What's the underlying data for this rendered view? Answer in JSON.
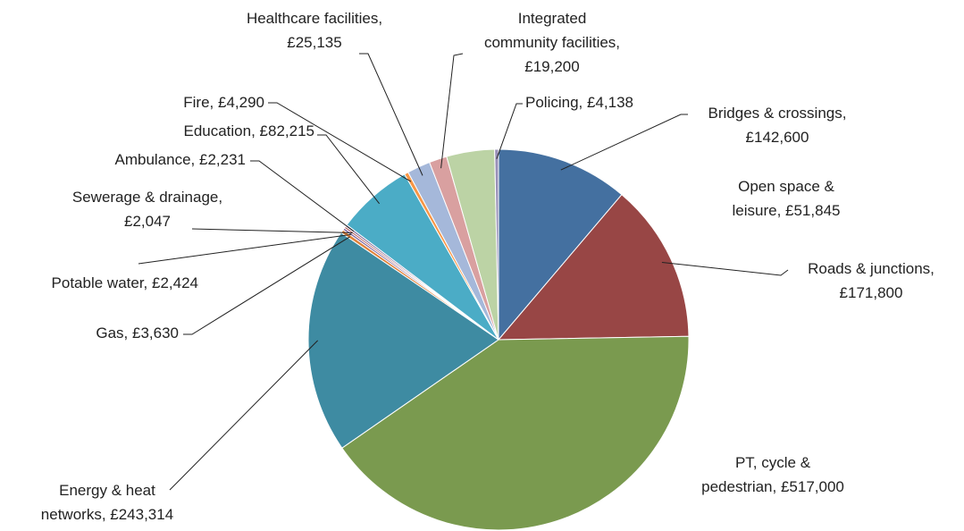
{
  "chart_data": {
    "type": "pie",
    "categories": [
      "Bridges & crossings",
      "Roads & junctions",
      "PT, cycle & pedestrian",
      "Energy & heat networks",
      "Gas",
      "Potable water",
      "Sewerage & drainage",
      "Ambulance",
      "Education",
      "Fire",
      "Healthcare facilities",
      "Integrated community facilities",
      "Open space & leisure",
      "Policing"
    ],
    "values": [
      142600,
      171800,
      517000,
      243314,
      3630,
      2424,
      2047,
      2231,
      82215,
      4290,
      25135,
      19200,
      51845,
      4138
    ],
    "value_labels": [
      "£142,600",
      "£171,800",
      "£517,000",
      "£243,314",
      "£3,630",
      "£2,424",
      "£2,047",
      "£2,231",
      "£82,215",
      "£4,290",
      "£25,135",
      "£19,200",
      "£51,845",
      "£4,138"
    ],
    "colors": [
      "#4470a0",
      "#984645",
      "#7a9a4f",
      "#3e8ba2",
      "#e0823a",
      "#8066a0",
      "#b0504f",
      "#7c6a9a",
      "#4bacc6",
      "#f79646",
      "#a5b8da",
      "#d9a0a0",
      "#bcd3a5",
      "#9990b8"
    ]
  }
}
